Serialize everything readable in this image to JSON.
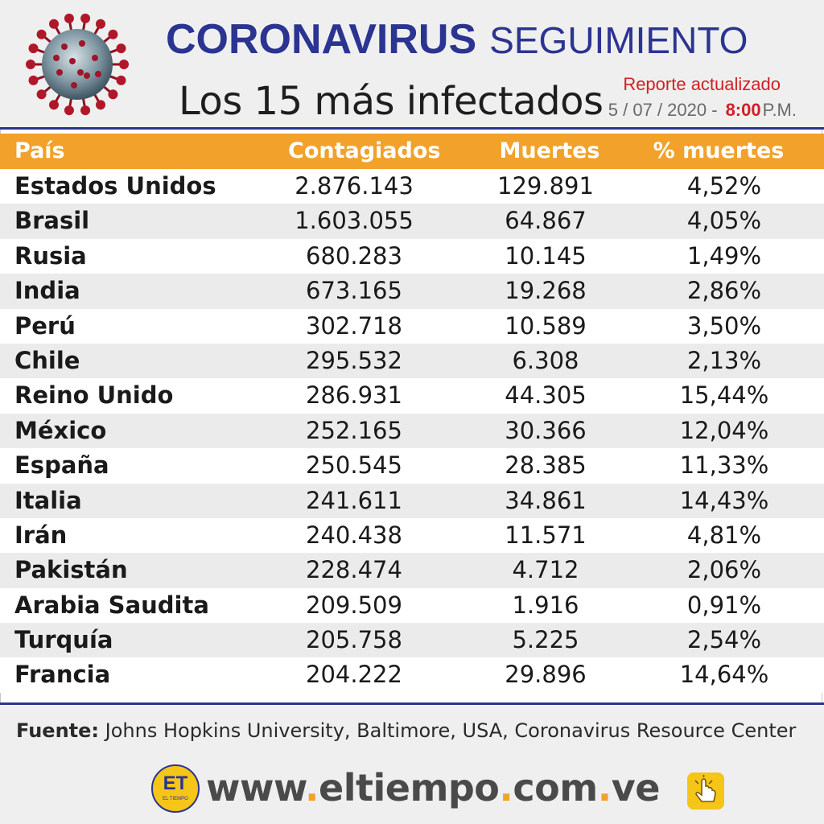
{
  "header": {
    "title_part1": "CORONAVIRUS",
    "title_part2": "SEGUIMIENTO",
    "subtitle": "Los 15 más infectados",
    "report_label": "Reporte actualizado",
    "report_date": "5 / 07 / 2020 -",
    "report_hour": "8:00",
    "report_ampm": "P.M.",
    "icon": "coronavirus-icon"
  },
  "chart_data": {
    "type": "table",
    "columns": [
      "País",
      "Contagiados",
      "Muertes",
      "% muertes"
    ],
    "rows": [
      [
        "Estados Unidos",
        "2.876.143",
        "129.891",
        "4,52%"
      ],
      [
        "Brasil",
        "1.603.055",
        "64.867",
        "4,05%"
      ],
      [
        "Rusia",
        "680.283",
        "10.145",
        "1,49%"
      ],
      [
        "India",
        "673.165",
        "19.268",
        "2,86%"
      ],
      [
        "Perú",
        "302.718",
        "10.589",
        "3,50%"
      ],
      [
        "Chile",
        "295.532",
        "6.308",
        "2,13%"
      ],
      [
        "Reino Unido",
        "286.931",
        "44.305",
        "15,44%"
      ],
      [
        "México",
        "252.165",
        "30.366",
        "12,04%"
      ],
      [
        "España",
        "250.545",
        "28.385",
        "11,33%"
      ],
      [
        "Italia",
        "241.611",
        "34.861",
        "14,43%"
      ],
      [
        "Irán",
        "240.438",
        "11.571",
        "4,81%"
      ],
      [
        "Pakistán",
        "228.474",
        "4.712",
        "2,06%"
      ],
      [
        "Arabia Saudita",
        "209.509",
        "1.916",
        "0,91%"
      ],
      [
        "Turquía",
        "205.758",
        "5.225",
        "2,54%"
      ],
      [
        "Francia",
        "204.222",
        "29.896",
        "14,64%"
      ]
    ]
  },
  "footer": {
    "source_label": "Fuente:",
    "source_text": "Johns Hopkins University, Baltimore, USA, Coronavirus Resource Center",
    "logo_text": "ET",
    "logo_sub": "EL TIEMPO",
    "website_part1": "www",
    "website_part2": "eltiempo",
    "website_part3": "com",
    "website_part4": "ve",
    "click_icon": "hand-pointer-icon"
  },
  "colors": {
    "brand_blue": "#2b3491",
    "header_orange": "#f2a12a",
    "accent_red": "#d11f26"
  }
}
